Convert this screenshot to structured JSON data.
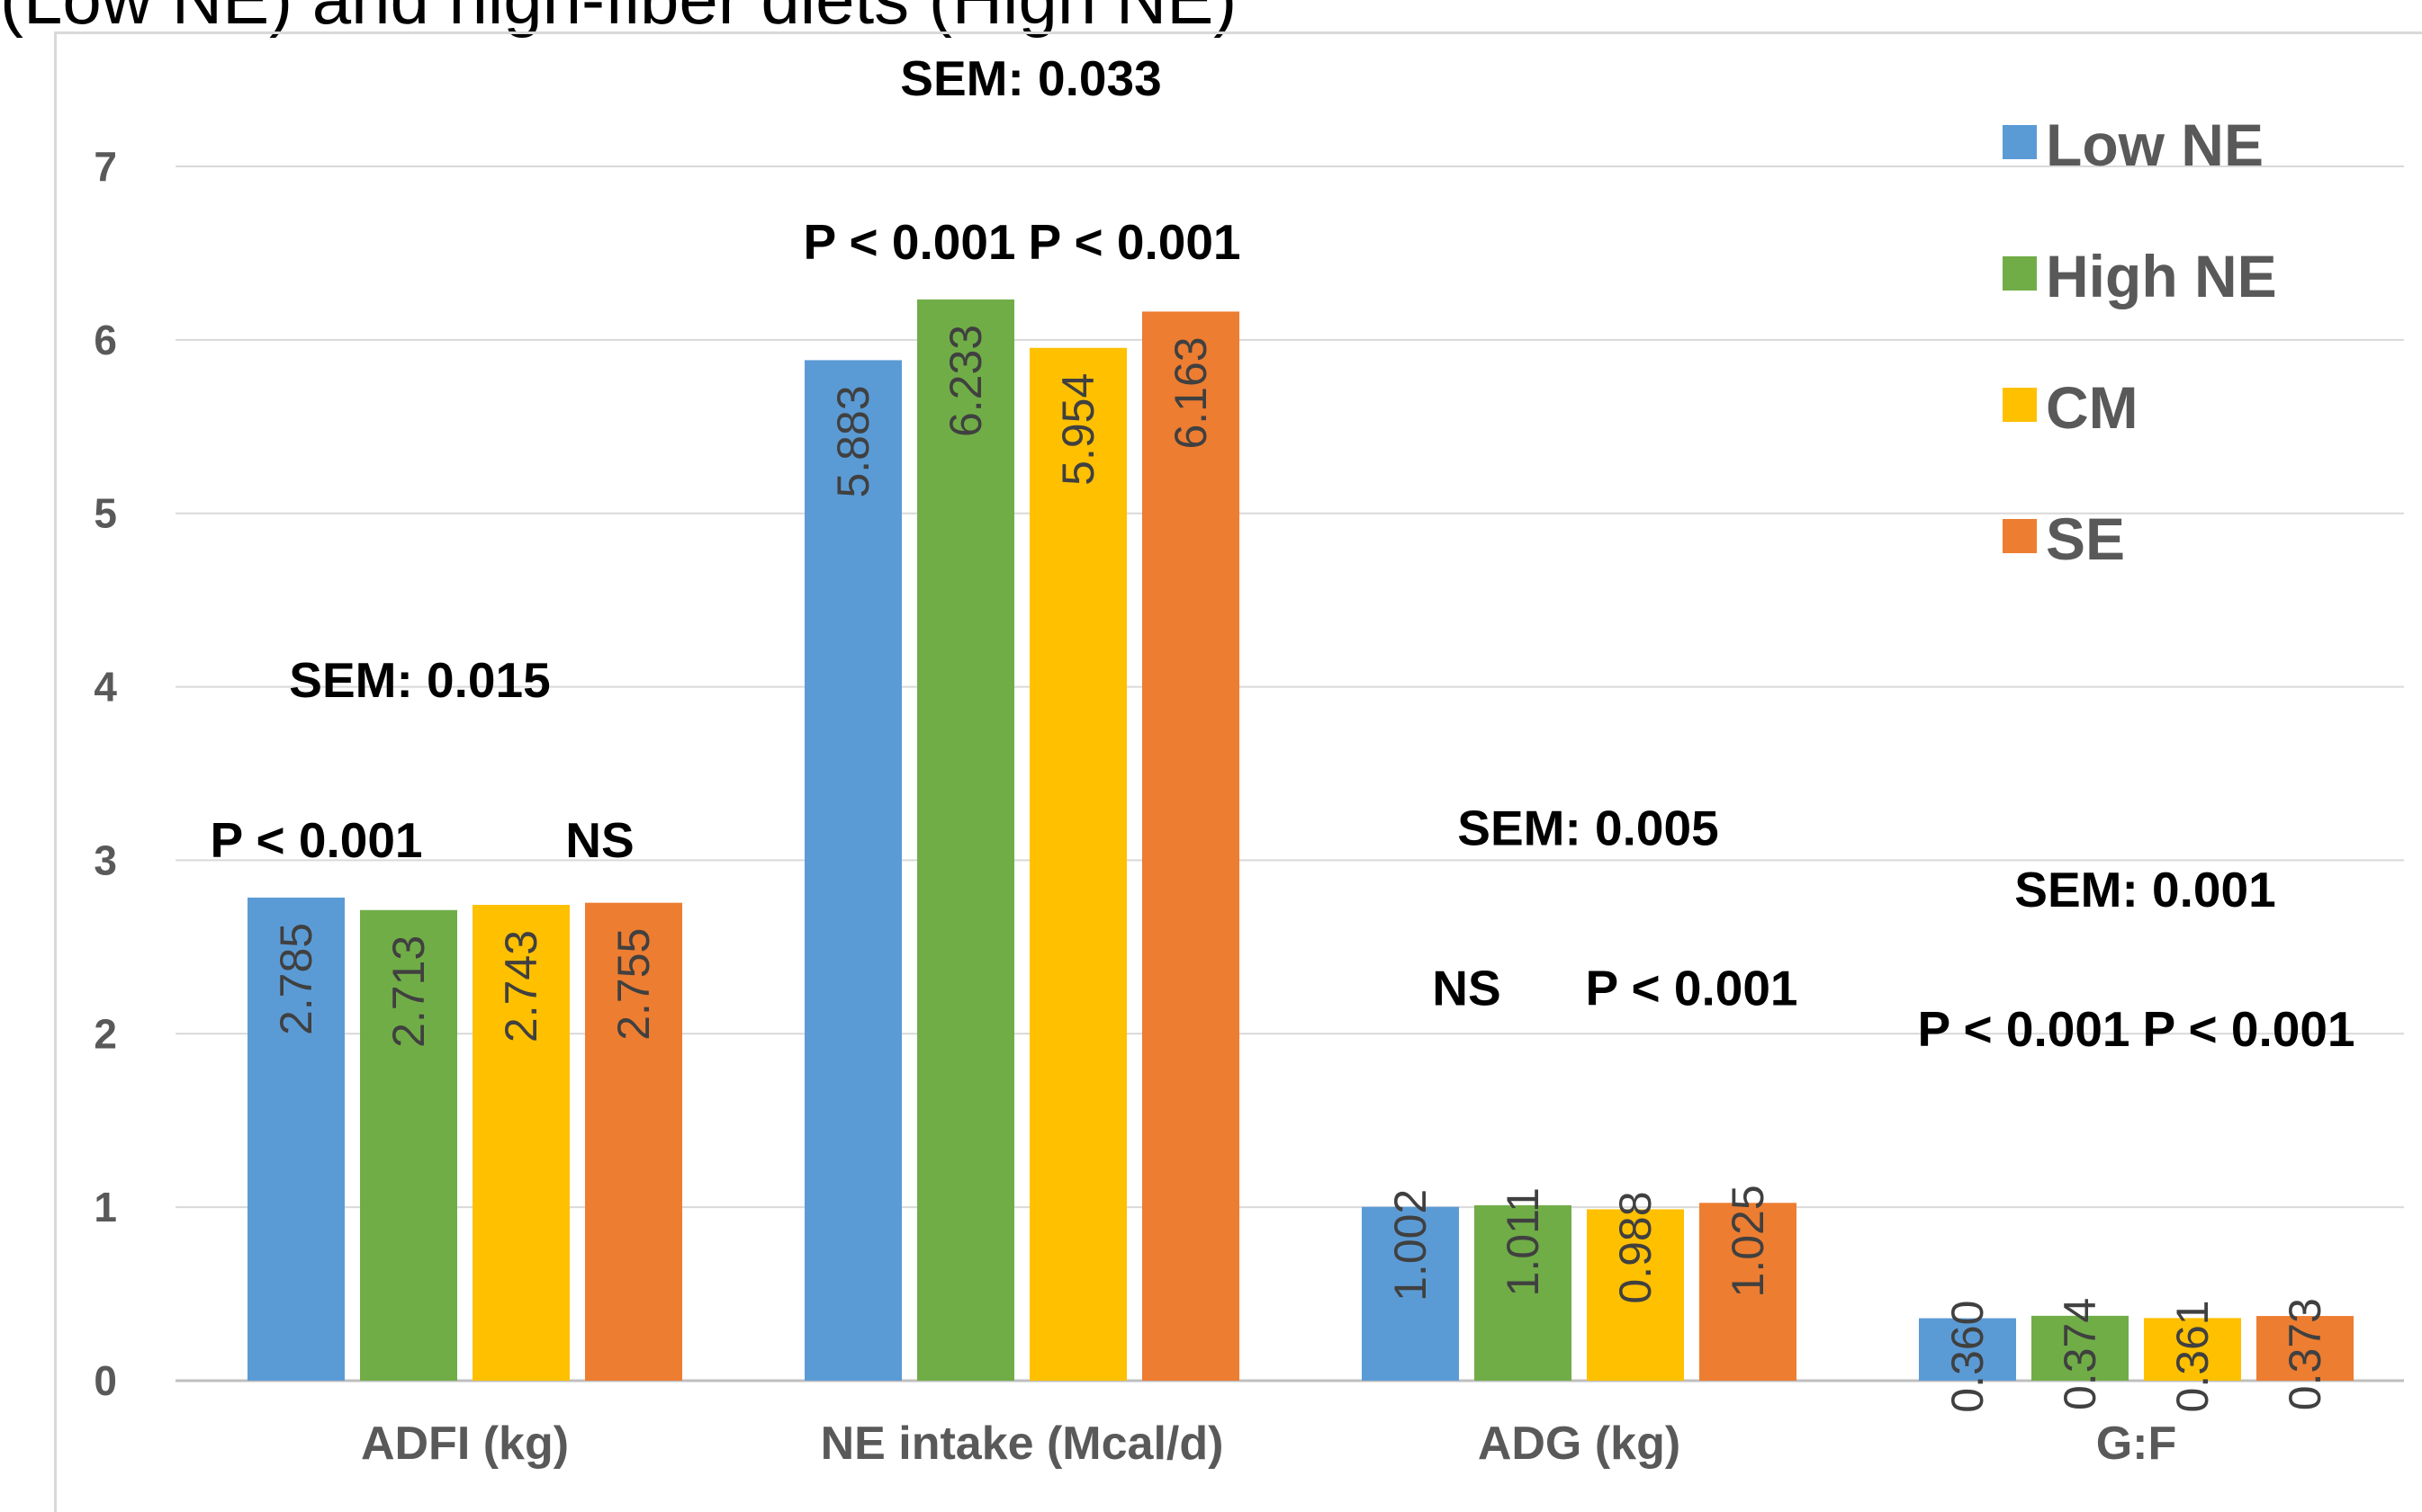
{
  "header": {
    "caption": "(Low NE) and high-fiber diets (High NE)"
  },
  "chart_data": {
    "type": "bar",
    "categories": [
      "ADFI (kg)",
      "NE intake (Mcal/d)",
      "ADG (kg)",
      "G:F"
    ],
    "series": [
      {
        "name": "Low NE",
        "color": "#5b9bd5",
        "values": [
          2.785,
          5.883,
          1.002,
          0.36
        ],
        "labels": [
          "2.785",
          "5.883",
          "1.002",
          "0.360"
        ]
      },
      {
        "name": "High NE",
        "color": "#70ad47",
        "values": [
          2.713,
          6.233,
          1.011,
          0.374
        ],
        "labels": [
          "2.713",
          "6.233",
          "1.011",
          "0.374"
        ]
      },
      {
        "name": "CM",
        "color": "#ffc000",
        "values": [
          2.743,
          5.954,
          0.988,
          0.361
        ],
        "labels": [
          "2.743",
          "5.954",
          "0.988",
          "0.361"
        ]
      },
      {
        "name": "SE",
        "color": "#ed7d31",
        "values": [
          2.755,
          6.163,
          1.025,
          0.373
        ],
        "labels": [
          "2.755",
          "6.163",
          "1.025",
          "0.373"
        ]
      }
    ],
    "ylim": [
      0,
      7
    ],
    "yticks": [
      "0",
      "1",
      "2",
      "3",
      "4",
      "5",
      "6",
      "7"
    ],
    "grid": true,
    "legend_position": "top-right",
    "annotations": [
      {
        "category": 0,
        "sem": "SEM: 0.015",
        "p_left": "P < 0.001",
        "p_right": "NS"
      },
      {
        "category": 1,
        "sem": "SEM: 0.033",
        "p_left": "P < 0.001",
        "p_right": "P < 0.001"
      },
      {
        "category": 2,
        "sem": "SEM: 0.005",
        "p_left": "NS",
        "p_right": "P < 0.001"
      },
      {
        "category": 3,
        "sem": "SEM: 0.001",
        "p_left": "P < 0.001",
        "p_right": "P < 0.001"
      }
    ]
  }
}
